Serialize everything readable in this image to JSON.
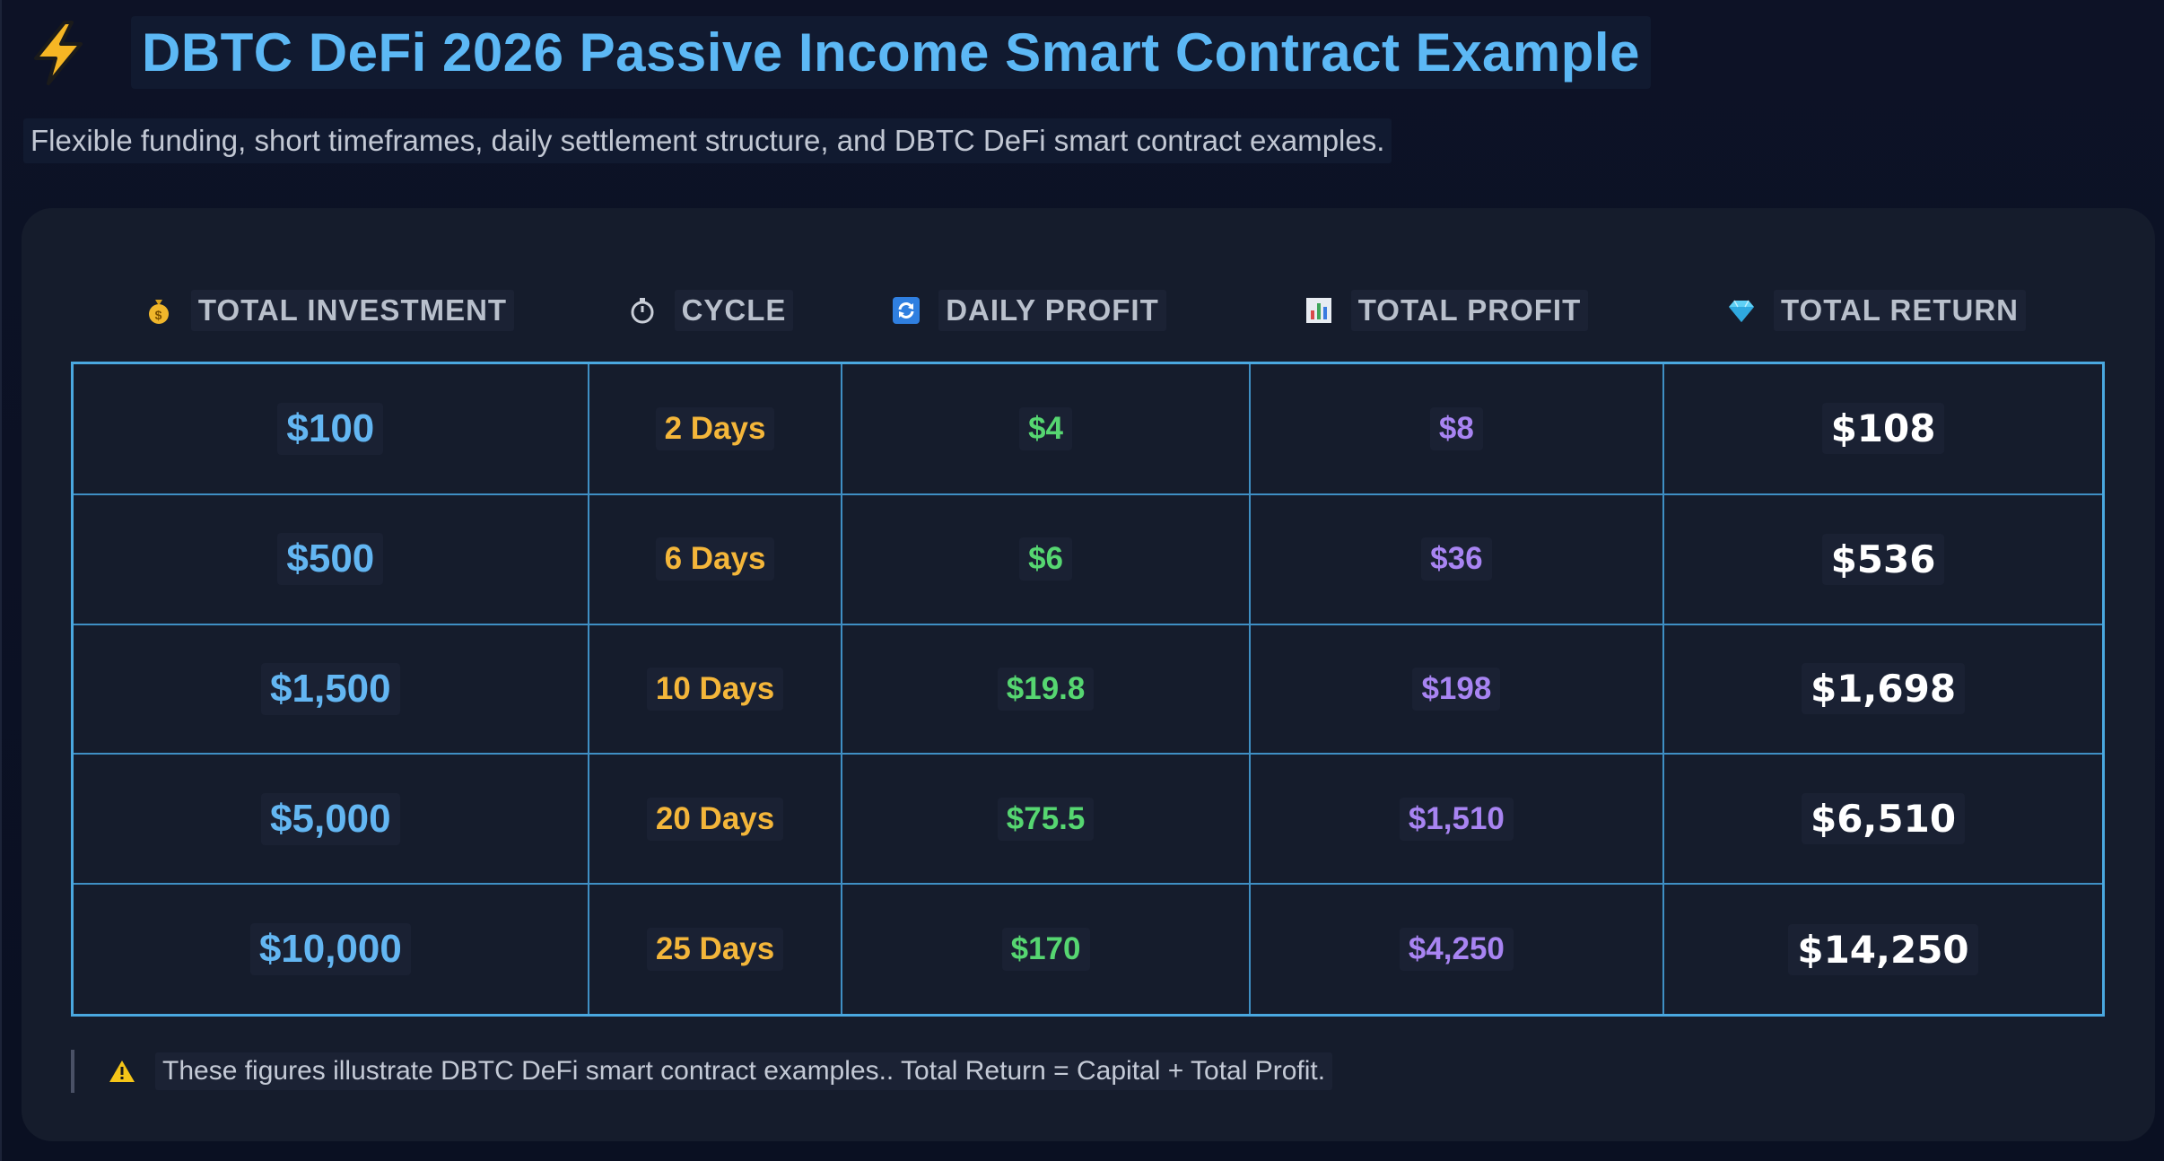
{
  "header": {
    "icon": "lightning-bolt-icon",
    "title": "DBTC DeFi 2026 Passive Income Smart Contract Example",
    "subtitle": "Flexible funding, short timeframes, daily settlement structure, and DBTC DeFi smart contract examples."
  },
  "table": {
    "columns": [
      {
        "label": "TOTAL INVESTMENT",
        "icon": "money-bag-icon"
      },
      {
        "label": "CYCLE",
        "icon": "stopwatch-icon"
      },
      {
        "label": "DAILY PROFIT",
        "icon": "refresh-icon"
      },
      {
        "label": "TOTAL PROFIT",
        "icon": "bar-chart-icon"
      },
      {
        "label": "TOTAL RETURN",
        "icon": "gem-icon"
      }
    ],
    "rows": [
      {
        "investment": "$100",
        "cycle": "2 Days",
        "daily": "$4",
        "total_profit": "$8",
        "total_return": "$108"
      },
      {
        "investment": "$500",
        "cycle": "6 Days",
        "daily": "$6",
        "total_profit": "$36",
        "total_return": "$536"
      },
      {
        "investment": "$1,500",
        "cycle": "10 Days",
        "daily": "$19.8",
        "total_profit": "$198",
        "total_return": "$1,698"
      },
      {
        "investment": "$5,000",
        "cycle": "20 Days",
        "daily": "$75.5",
        "total_profit": "$1,510",
        "total_return": "$6,510"
      },
      {
        "investment": "$10,000",
        "cycle": "25 Days",
        "daily": "$170",
        "total_profit": "$4,250",
        "total_return": "$14,250"
      }
    ]
  },
  "note": {
    "icon": "warning-icon",
    "text": "These figures illustrate DBTC DeFi smart contract examples.. Total Return = Capital + Total Profit."
  },
  "colors": {
    "title": "#5cb8f5",
    "investment": "#63b6f2",
    "cycle": "#f4b63a",
    "daily_profit": "#56d671",
    "total_profit": "#a884f2",
    "total_return": "#ffffff",
    "table_border": "#4aa8e0"
  }
}
